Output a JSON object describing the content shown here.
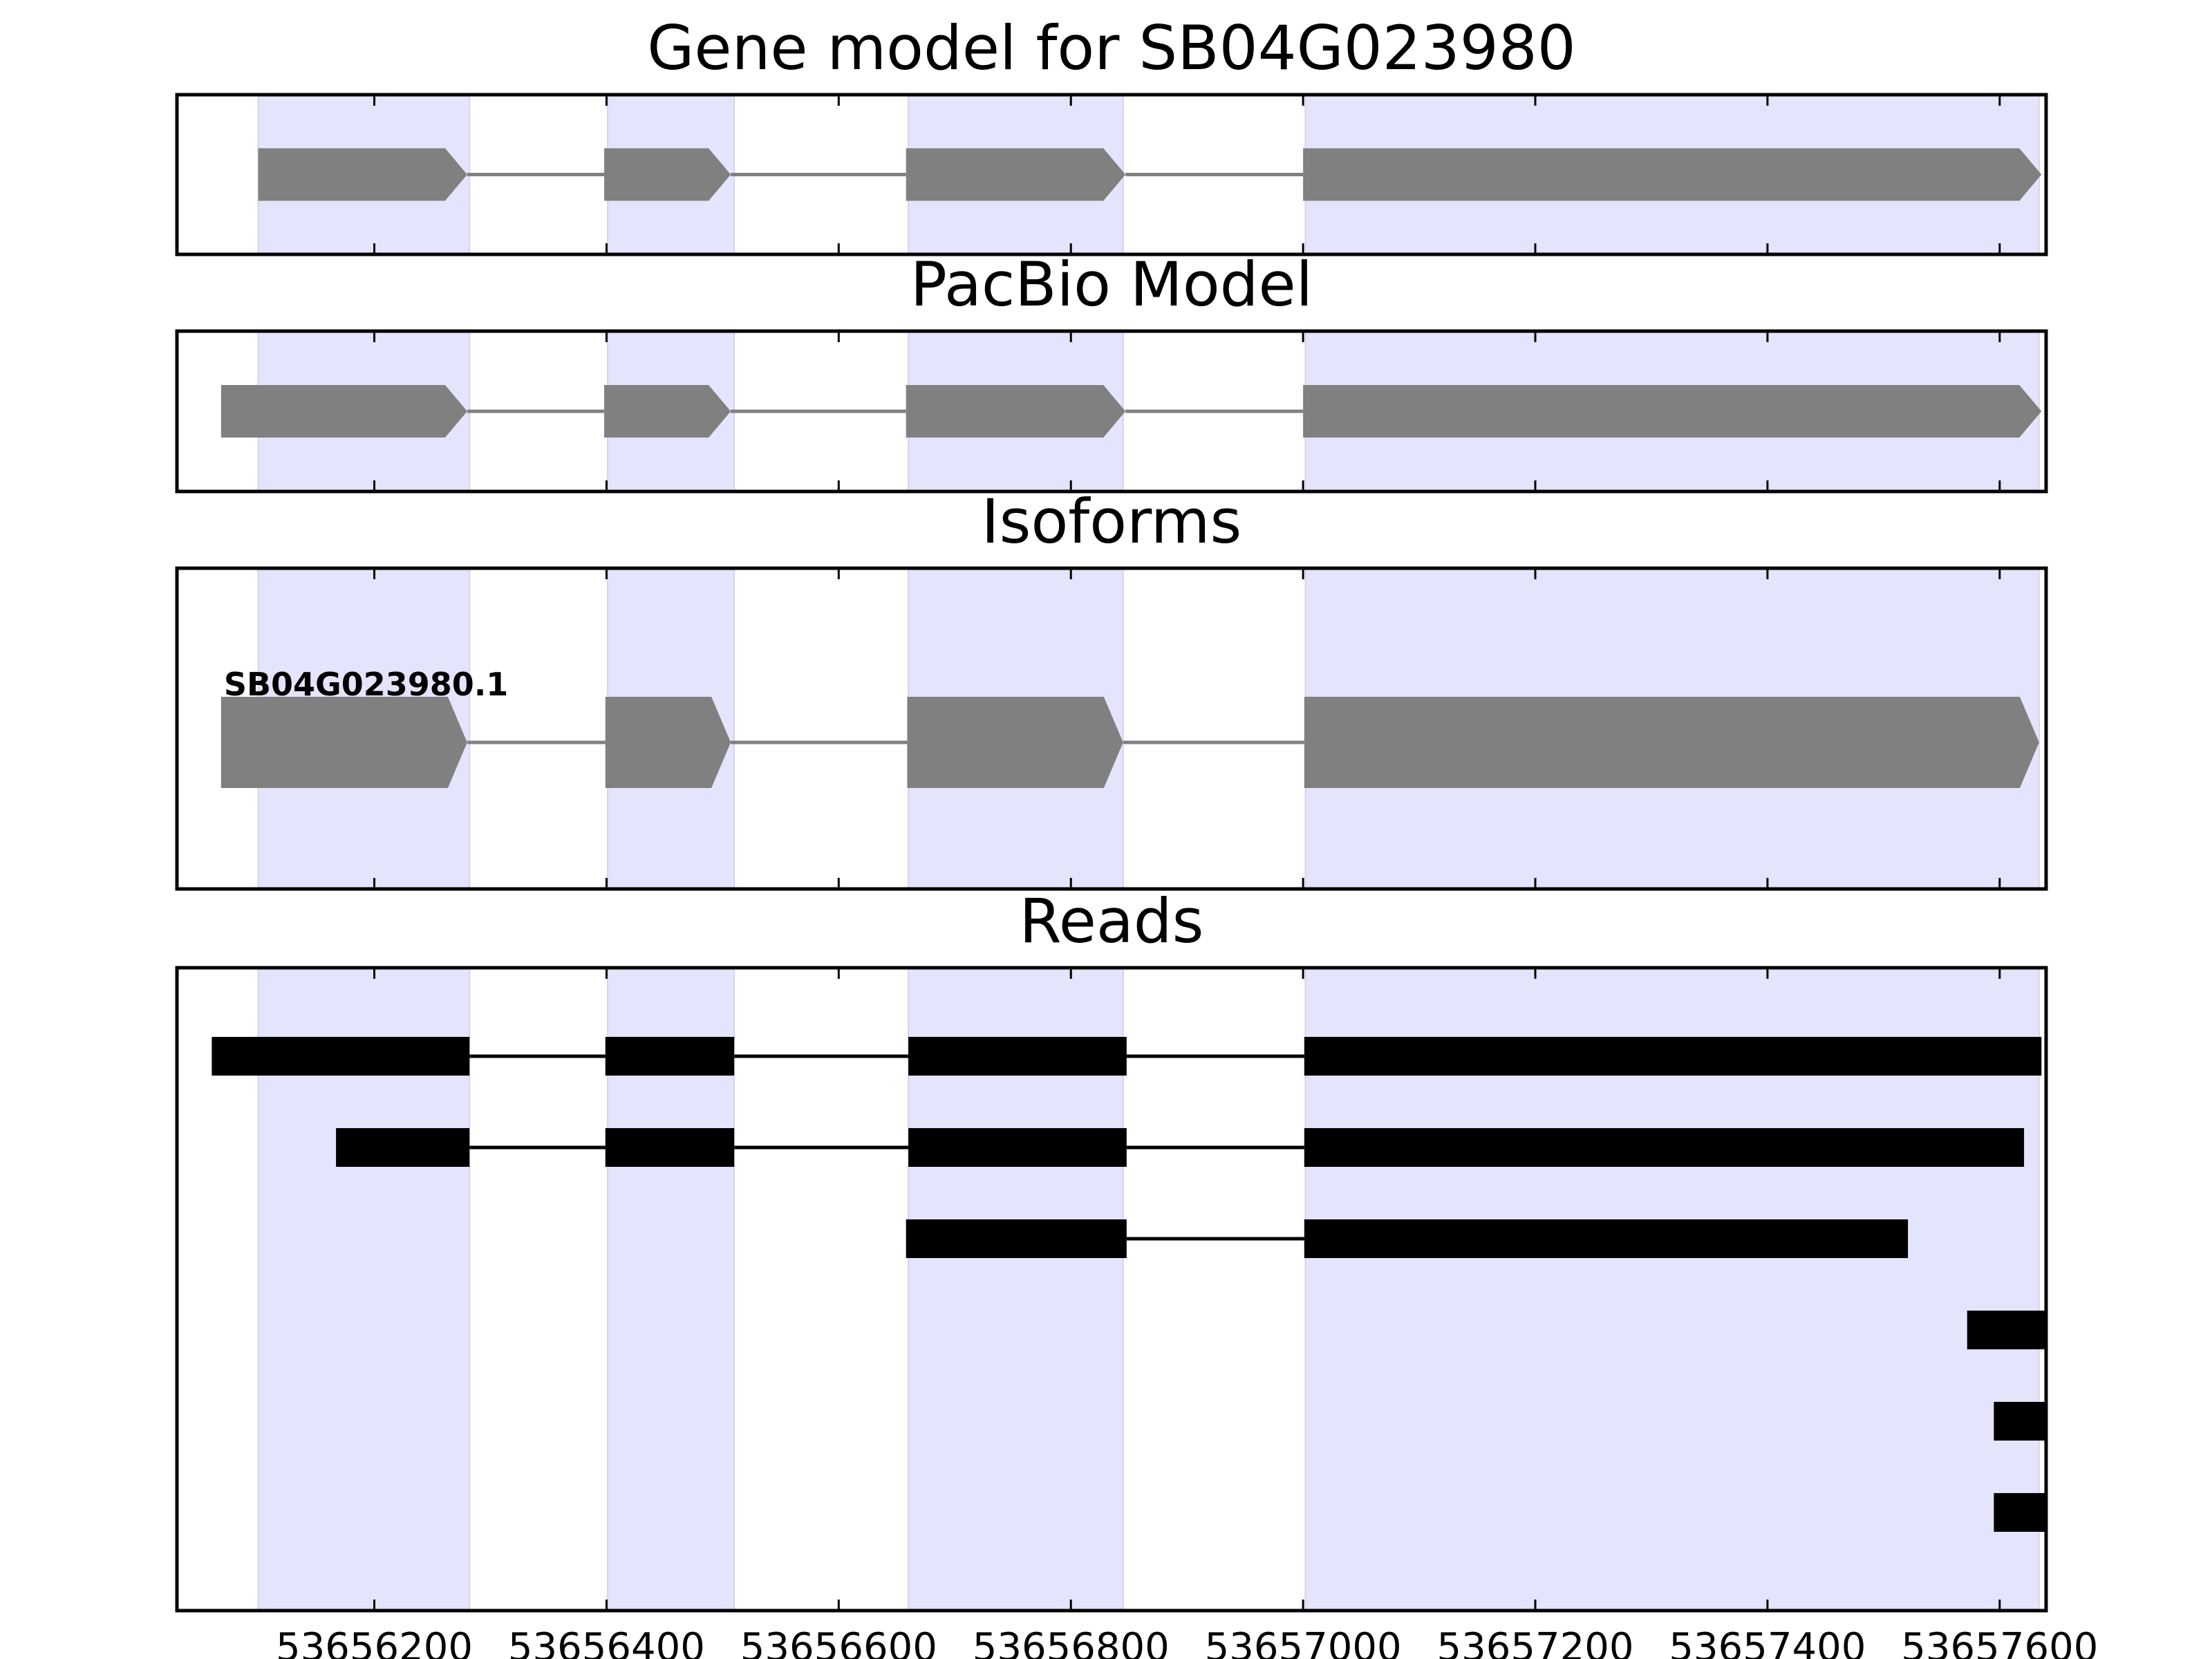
{
  "chart_data": {
    "type": "gene-structure",
    "x_range": [
      53656030,
      53657640
    ],
    "x_ticks": [
      53656200,
      53656400,
      53656600,
      53656800,
      53657000,
      53657200,
      53657400,
      53657600
    ],
    "highlight_color": "#e4e4fc",
    "feature_color": "#808080",
    "read_color": "#000000",
    "highlight_regions": [
      [
        53656100,
        53656282
      ],
      [
        53656401,
        53656510
      ],
      [
        53656660,
        53656845
      ],
      [
        53657002,
        53657634
      ]
    ],
    "panels": [
      {
        "title": "Gene model for SB04G023980",
        "kind": "model",
        "exons": [
          [
            53656100,
            53656280
          ],
          [
            53656398,
            53656507
          ],
          [
            53656658,
            53656847
          ],
          [
            53657000,
            53657636
          ]
        ]
      },
      {
        "title": "PacBio Model",
        "kind": "model",
        "exons": [
          [
            53656068,
            53656280
          ],
          [
            53656398,
            53656507
          ],
          [
            53656658,
            53656847
          ],
          [
            53657000,
            53657636
          ]
        ]
      },
      {
        "title": "Isoforms",
        "kind": "isoforms",
        "isoforms": [
          {
            "label": "SB04G023980.1",
            "exons": [
              [
                53656068,
                53656280
              ],
              [
                53656399,
                53656507
              ],
              [
                53656659,
                53656845
              ],
              [
                53657001,
                53657634
              ]
            ]
          }
        ]
      },
      {
        "title": "Reads",
        "kind": "reads",
        "reads": [
          [
            [
              53656060,
              53656282
            ],
            [
              53656399,
              53656510
            ],
            [
              53656660,
              53656848
            ],
            [
              53657001,
              53657636
            ]
          ],
          [
            [
              53656167,
              53656282
            ],
            [
              53656399,
              53656510
            ],
            [
              53656660,
              53656848
            ],
            [
              53657001,
              53657621
            ]
          ],
          [
            [
              53656658,
              53656848
            ],
            [
              53657001,
              53657521
            ]
          ],
          [
            [
              53657572,
              53657640
            ]
          ],
          [
            [
              53657595,
              53657640
            ]
          ],
          [
            [
              53657595,
              53657640
            ]
          ]
        ]
      }
    ]
  }
}
